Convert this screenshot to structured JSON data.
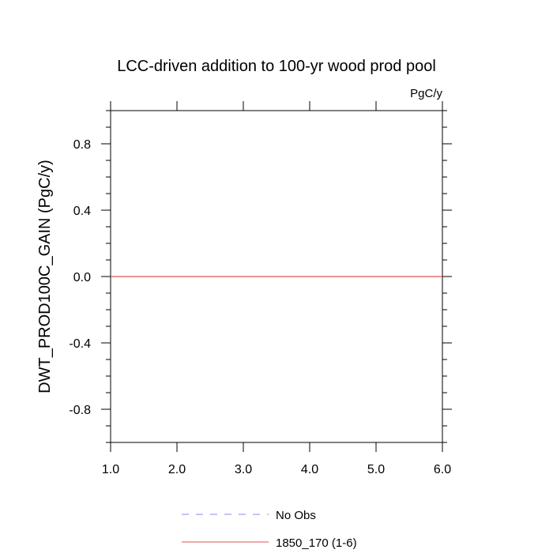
{
  "chart_data": {
    "type": "line",
    "title": "LCC-driven addition to 100-yr wood prod pool",
    "units_label": "PgC/y",
    "xlabel": "",
    "ylabel": "DWT_PROD100C_GAIN  (PgC/y)",
    "xlim": [
      1.0,
      6.0
    ],
    "ylim": [
      -1.0,
      1.0
    ],
    "x_ticks": [
      1.0,
      2.0,
      3.0,
      4.0,
      5.0,
      6.0
    ],
    "x_tick_labels": [
      "1.0",
      "2.0",
      "3.0",
      "4.0",
      "5.0",
      "6.0"
    ],
    "y_ticks": [
      -0.8,
      -0.4,
      0.0,
      0.4,
      0.8
    ],
    "y_tick_labels": [
      "-0.8",
      "-0.4",
      "0.0",
      "0.4",
      "0.8"
    ],
    "grid": false,
    "legend_position": "bottom",
    "series": [
      {
        "name": "No Obs",
        "color": "#8a8ae6",
        "style": "dashed",
        "x": [],
        "y": []
      },
      {
        "name": "1850_170 (1-6)",
        "color": "#e05050",
        "style": "solid",
        "x": [
          1,
          2,
          3,
          4,
          5,
          6
        ],
        "y": [
          0,
          0,
          0,
          0,
          0,
          0
        ]
      }
    ]
  }
}
